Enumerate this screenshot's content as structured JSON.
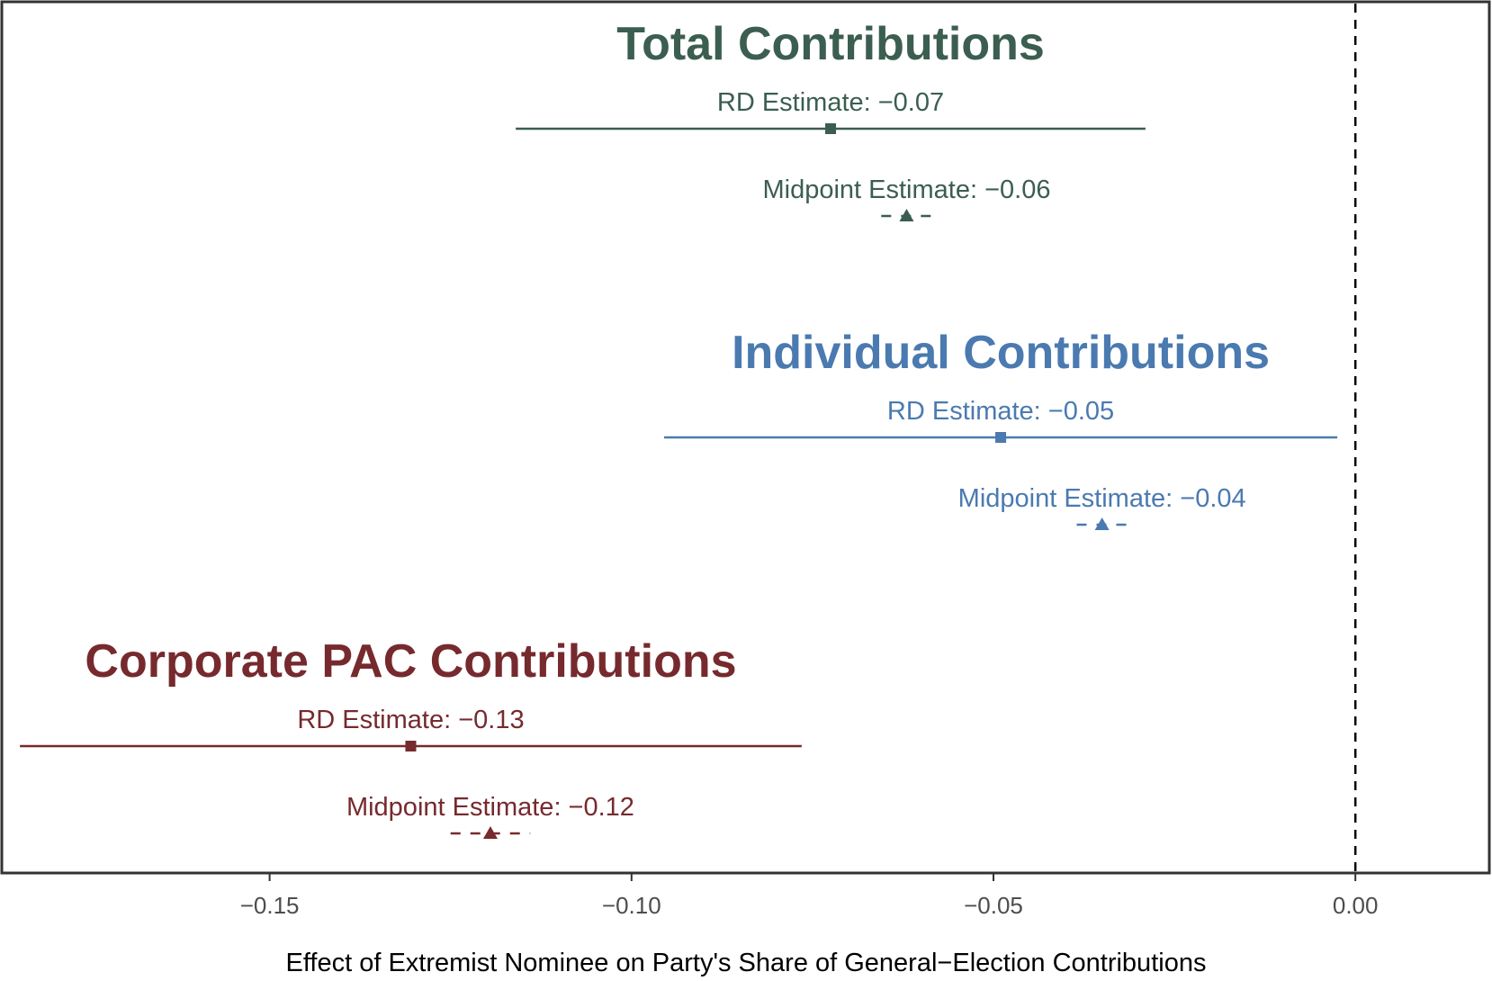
{
  "chart_data": {
    "type": "forest",
    "xlabel": "Effect of Extremist Nominee on Party's Share of General−Election Contributions",
    "xlim": [
      -0.187,
      0.0185
    ],
    "xticks": [
      -0.15,
      -0.1,
      -0.05,
      0.0
    ],
    "xtick_labels": [
      "−0.15",
      "−0.10",
      "−0.05",
      "0.00"
    ],
    "reference_line": {
      "x": 0.0,
      "style": "dashed"
    },
    "groups": [
      {
        "title": "Total Contributions",
        "color": "#3b5e50",
        "estimates": [
          {
            "method": "RD",
            "label": "RD Estimate: −0.07",
            "value": -0.0725,
            "ci": [
              -0.116,
              -0.029
            ],
            "marker": "square",
            "line": "solid"
          },
          {
            "method": "Midpoint",
            "label": "Midpoint Estimate: −0.06",
            "value": -0.062,
            "ci": [
              -0.0655,
              -0.0585
            ],
            "marker": "triangle",
            "line": "dashed"
          }
        ]
      },
      {
        "title": "Individual Contributions",
        "color": "#4a7ab0",
        "estimates": [
          {
            "method": "RD",
            "label": "RD Estimate: −0.05",
            "value": -0.049,
            "ci": [
              -0.0955,
              -0.0025
            ],
            "marker": "square",
            "line": "solid"
          },
          {
            "method": "Midpoint",
            "label": "Midpoint Estimate: −0.04",
            "value": -0.035,
            "ci": [
              -0.0385,
              -0.0315
            ],
            "marker": "triangle",
            "line": "dashed"
          }
        ]
      },
      {
        "title": "Corporate PAC Contributions",
        "color": "#762a2e",
        "estimates": [
          {
            "method": "RD",
            "label": "RD Estimate: −0.13",
            "value": -0.1305,
            "ci": [
              -0.1845,
              -0.0765
            ],
            "marker": "square",
            "line": "solid"
          },
          {
            "method": "Midpoint",
            "label": "Midpoint Estimate: −0.12",
            "value": -0.1195,
            "ci": [
              -0.125,
              -0.114
            ],
            "marker": "triangle",
            "line": "dashed"
          }
        ]
      }
    ]
  }
}
